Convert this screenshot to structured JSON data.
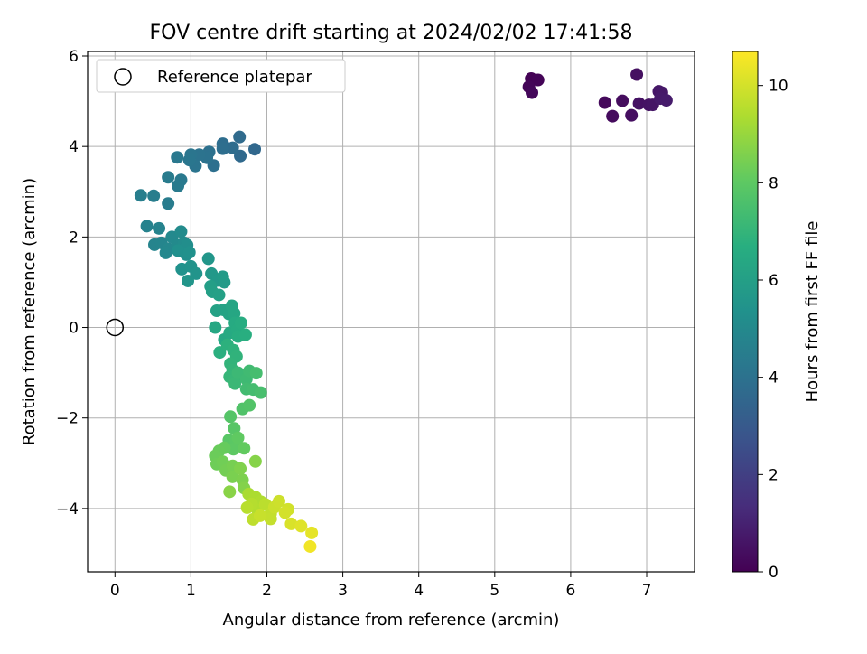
{
  "chart_data": {
    "type": "scatter",
    "title": "FOV centre drift starting at 2024/02/02 17:41:58",
    "xlabel": "Angular distance from reference (arcmin)",
    "ylabel": "Rotation from reference (arcmin)",
    "xlim": [
      -0.36,
      7.63
    ],
    "ylim": [
      -5.4,
      6.1
    ],
    "xticks": [
      0,
      1,
      2,
      3,
      4,
      5,
      6,
      7
    ],
    "yticks": [
      -4,
      -2,
      0,
      2,
      4,
      6
    ],
    "xtick_labels": [
      "0",
      "1",
      "2",
      "3",
      "4",
      "5",
      "6",
      "7"
    ],
    "ytick_labels": [
      "−4",
      "−2",
      "0",
      "2",
      "4",
      "6"
    ],
    "grid": true,
    "legend": {
      "position": "top-left",
      "entries": [
        {
          "label": "Reference platepar",
          "marker": "open-circle"
        }
      ]
    },
    "reference_point": {
      "x": 0,
      "y": 0
    },
    "colorbar": {
      "label": "Hours from first FF file",
      "colormap": "viridis",
      "range": [
        0,
        10.7
      ],
      "ticks": [
        0,
        2,
        4,
        6,
        8,
        10
      ],
      "tick_labels": [
        "0",
        "2",
        "4",
        "6",
        "8",
        "10"
      ]
    },
    "points": [
      [
        5.48,
        5.5,
        0.05
      ],
      [
        5.57,
        5.47,
        0.1
      ],
      [
        5.45,
        5.32,
        0.15
      ],
      [
        5.49,
        5.19,
        0.2
      ],
      [
        6.45,
        4.97,
        0.25
      ],
      [
        6.55,
        4.67,
        0.3
      ],
      [
        6.68,
        5.01,
        0.35
      ],
      [
        6.8,
        4.69,
        0.4
      ],
      [
        6.87,
        5.59,
        0.45
      ],
      [
        6.9,
        4.95,
        0.5
      ],
      [
        7.03,
        4.92,
        0.55
      ],
      [
        7.08,
        4.92,
        0.6
      ],
      [
        7.16,
        5.22,
        0.65
      ],
      [
        7.2,
        5.19,
        0.7
      ],
      [
        7.18,
        5.06,
        0.75
      ],
      [
        7.26,
        5.02,
        0.8
      ],
      [
        1.84,
        3.94,
        3.6
      ],
      [
        1.65,
        3.79,
        3.65
      ],
      [
        1.64,
        4.21,
        3.7
      ],
      [
        1.55,
        3.97,
        3.75
      ],
      [
        1.42,
        4.06,
        3.8
      ],
      [
        1.42,
        3.95,
        3.85
      ],
      [
        1.3,
        3.58,
        3.9
      ],
      [
        1.24,
        3.88,
        3.95
      ],
      [
        1.21,
        3.75,
        4.0
      ],
      [
        1.11,
        3.82,
        4.05
      ],
      [
        1.06,
        3.57,
        4.1
      ],
      [
        1.0,
        3.82,
        4.15
      ],
      [
        0.98,
        3.7,
        4.2
      ],
      [
        0.82,
        3.76,
        4.25
      ],
      [
        0.87,
        3.26,
        4.3
      ],
      [
        0.83,
        3.13,
        4.35
      ],
      [
        0.7,
        3.32,
        4.4
      ],
      [
        0.7,
        2.74,
        4.45
      ],
      [
        0.51,
        2.91,
        4.5
      ],
      [
        0.34,
        2.92,
        4.55
      ],
      [
        0.42,
        2.24,
        4.7
      ],
      [
        0.58,
        2.19,
        4.75
      ],
      [
        0.52,
        1.83,
        4.8
      ],
      [
        0.61,
        1.87,
        4.85
      ],
      [
        0.7,
        1.74,
        4.9
      ],
      [
        0.67,
        1.65,
        4.95
      ],
      [
        0.75,
        2.0,
        5.0
      ],
      [
        0.82,
        1.82,
        5.05
      ],
      [
        0.87,
        2.12,
        5.1
      ],
      [
        0.91,
        1.87,
        5.15
      ],
      [
        0.95,
        1.82,
        5.2
      ],
      [
        0.94,
        1.61,
        5.25
      ],
      [
        0.83,
        1.7,
        5.3
      ],
      [
        0.98,
        1.66,
        5.35
      ],
      [
        0.88,
        1.29,
        5.4
      ],
      [
        1.0,
        1.35,
        5.45
      ],
      [
        1.07,
        1.19,
        5.5
      ],
      [
        0.96,
        1.03,
        5.55
      ],
      [
        1.23,
        1.52,
        5.6
      ],
      [
        1.27,
        1.19,
        5.65
      ],
      [
        1.35,
        1.04,
        5.7
      ],
      [
        1.42,
        1.12,
        5.75
      ],
      [
        1.44,
        1.0,
        5.8
      ],
      [
        1.26,
        0.91,
        5.95
      ],
      [
        1.28,
        0.79,
        6.0
      ],
      [
        1.37,
        0.72,
        6.05
      ],
      [
        1.34,
        0.37,
        6.1
      ],
      [
        1.43,
        0.39,
        6.15
      ],
      [
        1.5,
        0.3,
        6.2
      ],
      [
        1.54,
        0.48,
        6.25
      ],
      [
        1.57,
        0.31,
        6.3
      ],
      [
        1.32,
        0.0,
        6.35
      ],
      [
        1.44,
        -0.27,
        6.4
      ],
      [
        1.51,
        -0.12,
        6.45
      ],
      [
        1.58,
        0.1,
        6.5
      ],
      [
        1.61,
        -0.05,
        6.55
      ],
      [
        1.66,
        0.1,
        6.6
      ],
      [
        1.62,
        -0.2,
        6.65
      ],
      [
        1.72,
        -0.16,
        6.7
      ],
      [
        1.38,
        -0.55,
        6.75
      ],
      [
        1.48,
        -0.38,
        6.8
      ],
      [
        1.56,
        -0.5,
        6.85
      ],
      [
        1.6,
        -0.64,
        6.9
      ],
      [
        1.52,
        -0.8,
        6.95
      ],
      [
        1.55,
        -0.94,
        7.0
      ],
      [
        1.51,
        -1.09,
        7.05
      ],
      [
        1.57,
        -1.16,
        7.1
      ],
      [
        1.58,
        -1.24,
        7.15
      ],
      [
        1.62,
        -1.0,
        7.2
      ],
      [
        1.73,
        -1.14,
        7.25
      ],
      [
        1.77,
        -0.96,
        7.3
      ],
      [
        1.73,
        -1.36,
        7.35
      ],
      [
        1.82,
        -1.37,
        7.4
      ],
      [
        1.86,
        -1.01,
        7.45
      ],
      [
        1.92,
        -1.44,
        7.5
      ],
      [
        1.68,
        -1.8,
        7.7
      ],
      [
        1.77,
        -1.72,
        7.75
      ],
      [
        1.52,
        -1.97,
        7.8
      ],
      [
        1.57,
        -2.23,
        7.85
      ],
      [
        1.5,
        -2.49,
        7.9
      ],
      [
        1.58,
        -2.55,
        7.95
      ],
      [
        1.56,
        -2.69,
        8.0
      ],
      [
        1.62,
        -2.44,
        8.05
      ],
      [
        1.7,
        -2.67,
        8.1
      ],
      [
        1.44,
        -2.66,
        8.15
      ],
      [
        1.37,
        -2.73,
        8.2
      ],
      [
        1.32,
        -2.84,
        8.25
      ],
      [
        1.34,
        -3.02,
        8.3
      ],
      [
        1.42,
        -2.97,
        8.35
      ],
      [
        1.46,
        -3.16,
        8.4
      ],
      [
        1.55,
        -3.06,
        8.45
      ],
      [
        1.55,
        -3.3,
        8.5
      ],
      [
        1.68,
        -3.37,
        8.55
      ],
      [
        1.65,
        -3.12,
        8.6
      ],
      [
        1.7,
        -3.55,
        8.65
      ],
      [
        1.85,
        -2.96,
        8.7
      ],
      [
        1.51,
        -3.63,
        8.75
      ],
      [
        1.76,
        -3.68,
        9.3
      ],
      [
        1.85,
        -3.75,
        9.35
      ],
      [
        1.92,
        -3.85,
        9.4
      ],
      [
        1.88,
        -4.04,
        9.45
      ],
      [
        1.8,
        -3.9,
        9.5
      ],
      [
        1.74,
        -3.98,
        9.55
      ],
      [
        1.98,
        -3.91,
        9.6
      ],
      [
        1.82,
        -4.24,
        9.65
      ],
      [
        2.05,
        -4.11,
        9.7
      ],
      [
        2.05,
        -4.23,
        9.75
      ],
      [
        1.91,
        -4.16,
        9.8
      ],
      [
        2.1,
        -3.97,
        9.85
      ],
      [
        2.16,
        -3.84,
        9.9
      ],
      [
        2.28,
        -4.02,
        9.95
      ],
      [
        2.24,
        -4.09,
        10.0
      ],
      [
        2.32,
        -4.34,
        10.1
      ],
      [
        2.45,
        -4.39,
        10.2
      ],
      [
        2.59,
        -4.54,
        10.3
      ],
      [
        2.57,
        -4.84,
        10.5
      ]
    ]
  }
}
